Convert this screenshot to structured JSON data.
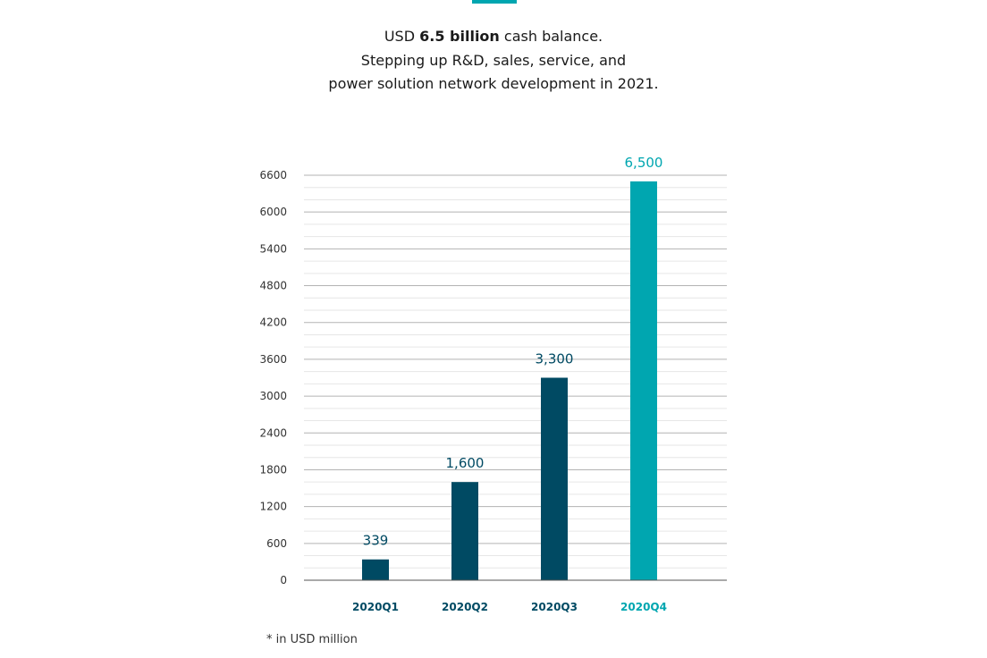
{
  "header": {
    "prefix": "USD ",
    "highlight": "6.5 billion",
    "suffix": " cash balance.",
    "line2": "Stepping up R&D, sales, service, and",
    "line3": "power solution network development in 2021."
  },
  "footnote": "* in USD million",
  "colors": {
    "accent": "#00a6b0",
    "bar_dark": "#004a63",
    "grid_major": "#b3b3b3",
    "grid_minor": "#e6e6e6",
    "axis": "#555555"
  },
  "chart_data": {
    "type": "bar",
    "title": "",
    "xlabel": "",
    "ylabel": "",
    "categories": [
      "2020Q1",
      "2020Q2",
      "2020Q3",
      "2020Q4"
    ],
    "values": [
      339,
      1600,
      3300,
      6500
    ],
    "value_labels": [
      "339",
      "1,600",
      "3,300",
      "6,500"
    ],
    "highlight_index": 3,
    "ylim": [
      0,
      6600
    ],
    "yticks": [
      0,
      600,
      1200,
      1800,
      2400,
      3000,
      3600,
      4200,
      4800,
      5400,
      6000,
      6600
    ],
    "minor_step": 200,
    "grid": true,
    "legend": "none"
  }
}
